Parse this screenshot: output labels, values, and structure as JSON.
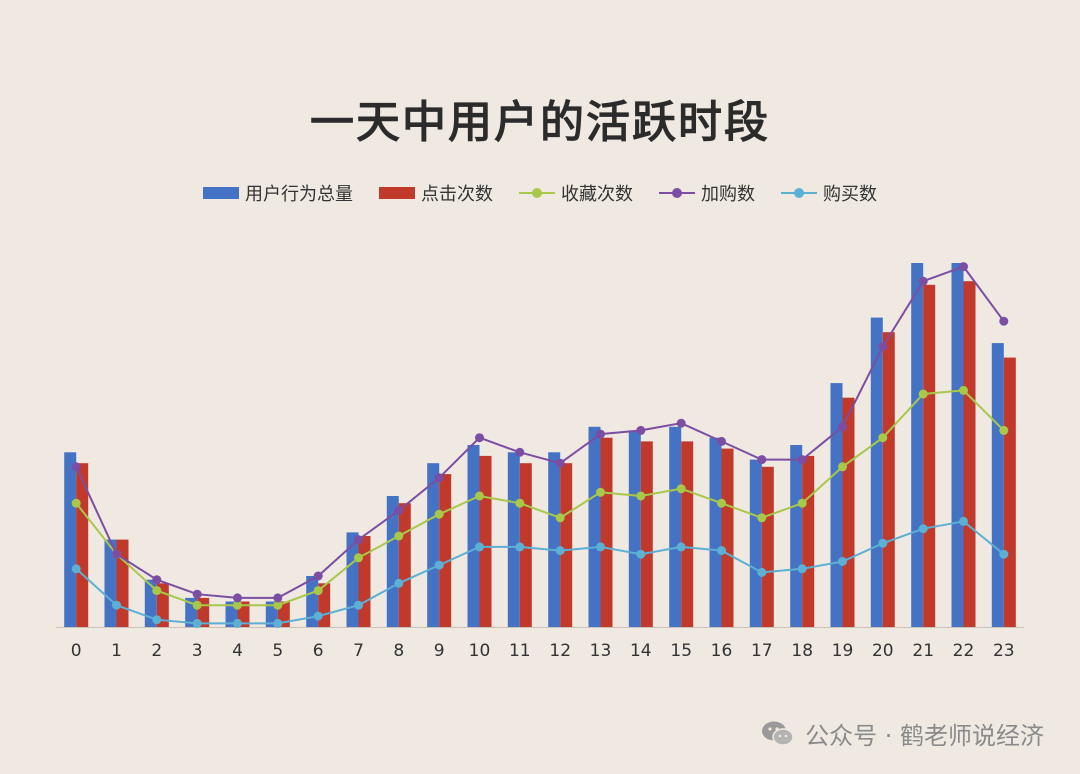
{
  "title": "一天中用户的活跃时段",
  "legend": {
    "total": "用户行为总量",
    "click": "点击次数",
    "fav": "收藏次数",
    "cart": "加购数",
    "buy": "购买数"
  },
  "watermark": {
    "text": "公众号 · 鹤老师说经济"
  },
  "colors": {
    "total": "#4472c4",
    "click": "#c0392b",
    "fav": "#a8c84a",
    "cart": "#7b4ea3",
    "buy": "#5bb0d4",
    "background": "#efe9e1"
  },
  "chart_data": {
    "type": "bar",
    "title": "一天中用户的活跃时段",
    "categories": [
      "0",
      "1",
      "2",
      "3",
      "4",
      "5",
      "6",
      "7",
      "8",
      "9",
      "10",
      "11",
      "12",
      "13",
      "14",
      "15",
      "16",
      "17",
      "18",
      "19",
      "20",
      "21",
      "22",
      "23"
    ],
    "ylim": [
      0,
      100
    ],
    "grid": false,
    "legend_position": "top",
    "series": [
      {
        "name": "用户行为总量",
        "kind": "bar",
        "values": [
          48,
          24,
          13,
          8,
          7,
          7,
          14,
          26,
          36,
          45,
          50,
          48,
          48,
          55,
          54,
          55,
          52,
          46,
          50,
          67,
          85,
          100,
          100,
          78
        ]
      },
      {
        "name": "点击次数",
        "kind": "bar",
        "values": [
          45,
          24,
          12,
          8,
          7,
          7,
          12,
          25,
          34,
          42,
          47,
          45,
          45,
          52,
          51,
          51,
          49,
          44,
          47,
          63,
          81,
          94,
          95,
          74
        ]
      },
      {
        "name": "收藏次数",
        "kind": "line",
        "values": [
          34,
          20,
          10,
          6,
          6,
          6,
          10,
          19,
          25,
          31,
          36,
          34,
          30,
          37,
          36,
          38,
          34,
          30,
          34,
          44,
          52,
          64,
          65,
          54
        ]
      },
      {
        "name": "加购数",
        "kind": "line",
        "values": [
          44,
          20,
          13,
          9,
          8,
          8,
          14,
          24,
          32,
          41,
          52,
          48,
          45,
          53,
          54,
          56,
          51,
          46,
          46,
          55,
          77,
          95,
          99,
          84
        ]
      },
      {
        "name": "购买数",
        "kind": "line",
        "values": [
          16,
          6,
          2,
          1,
          1,
          1,
          3,
          6,
          12,
          17,
          22,
          22,
          21,
          22,
          20,
          22,
          21,
          15,
          16,
          18,
          23,
          27,
          29,
          20
        ]
      }
    ]
  }
}
